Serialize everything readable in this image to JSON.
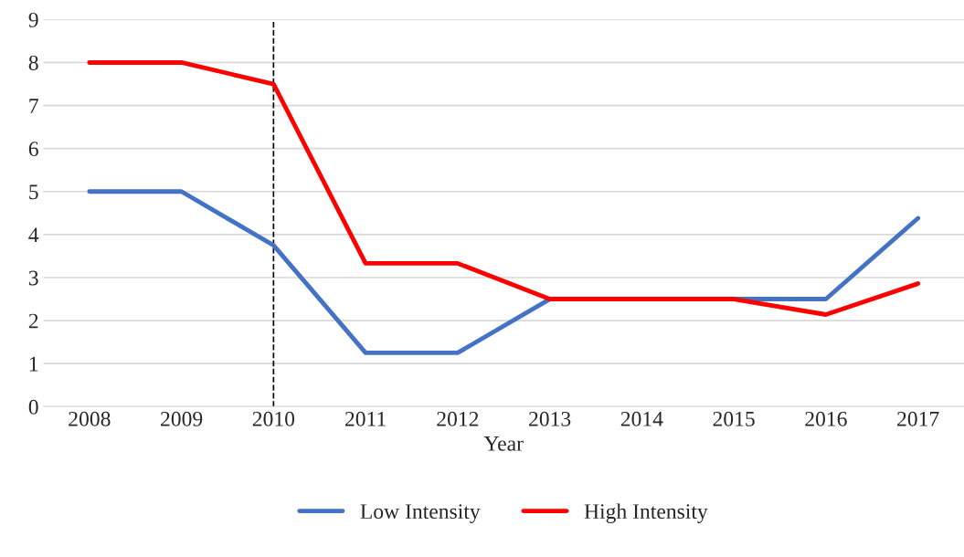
{
  "chart_data": {
    "type": "line",
    "xlabel": "Year",
    "categories": [
      "2008",
      "2009",
      "2010",
      "2011",
      "2012",
      "2013",
      "2014",
      "2015",
      "2016",
      "2017"
    ],
    "series": [
      {
        "name": "Low Intensity",
        "color": "#4472c4",
        "values": [
          5,
          5,
          3.75,
          1.25,
          1.25,
          2.5,
          null,
          2.5,
          2.5,
          4.38
        ]
      },
      {
        "name": "High Intensity",
        "color": "#ff0000",
        "values": [
          8,
          8,
          7.5,
          3.33,
          3.33,
          2.5,
          2.5,
          2.5,
          2.14,
          2.86
        ]
      }
    ],
    "ylim": [
      0,
      9
    ],
    "yticks": [
      0,
      1,
      2,
      3,
      4,
      5,
      6,
      7,
      8,
      9
    ],
    "grid": "y",
    "legend": "bottom",
    "marker": "none",
    "line_style": "solid",
    "ref_lines": [
      {
        "axis": "x",
        "value": "2010",
        "color": "#000000",
        "line_style": "dashed"
      }
    ]
  }
}
